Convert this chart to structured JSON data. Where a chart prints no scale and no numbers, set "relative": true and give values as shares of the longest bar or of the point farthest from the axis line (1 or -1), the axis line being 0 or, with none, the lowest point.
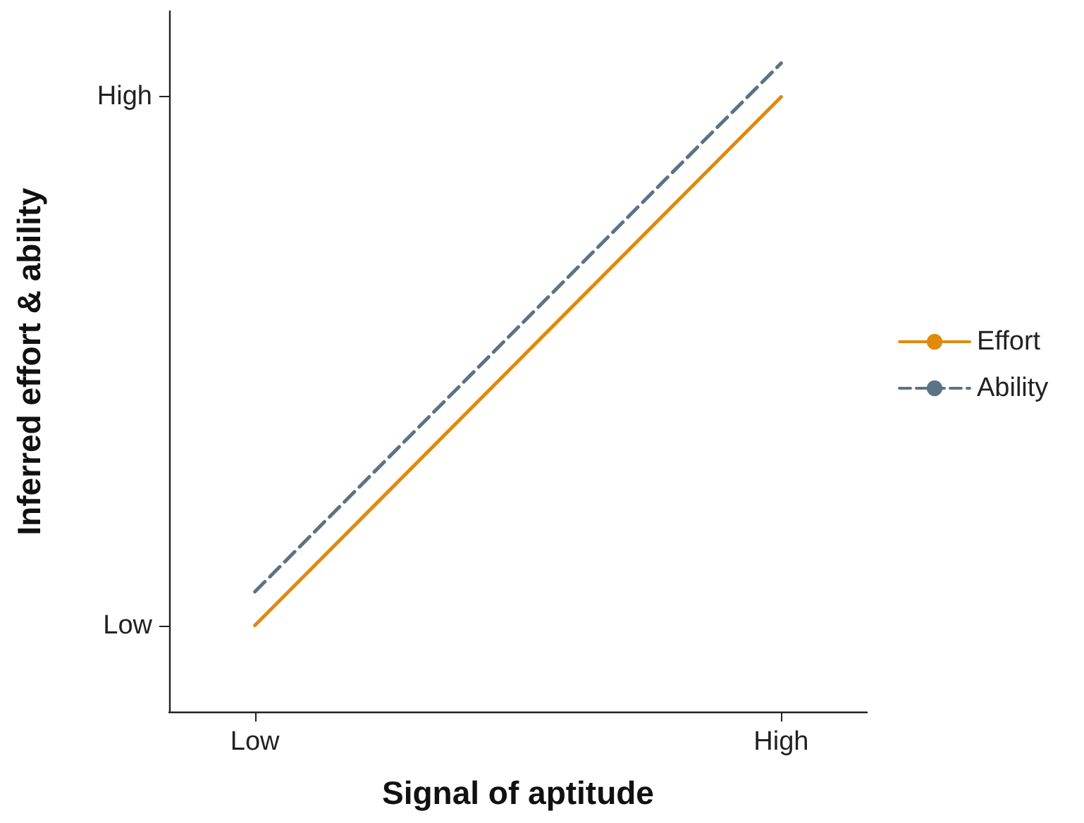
{
  "chart_data": {
    "type": "line",
    "xlabel": "Signal of aptitude",
    "ylabel": "Inferred effort & ability",
    "categories": [
      "Low",
      "High"
    ],
    "series": [
      {
        "name": "Effort",
        "color": "#e08a0b",
        "values": [
          0.133,
          0.948
        ],
        "line_style": "solid"
      },
      {
        "name": "Ability",
        "color": "#5b7384",
        "values": [
          0.185,
          1
        ],
        "line_style": "dashed"
      }
    ],
    "relative": true,
    "annotations": [
      "Low",
      "High"
    ],
    "grid": false,
    "legend": "right",
    "marker": "none"
  }
}
